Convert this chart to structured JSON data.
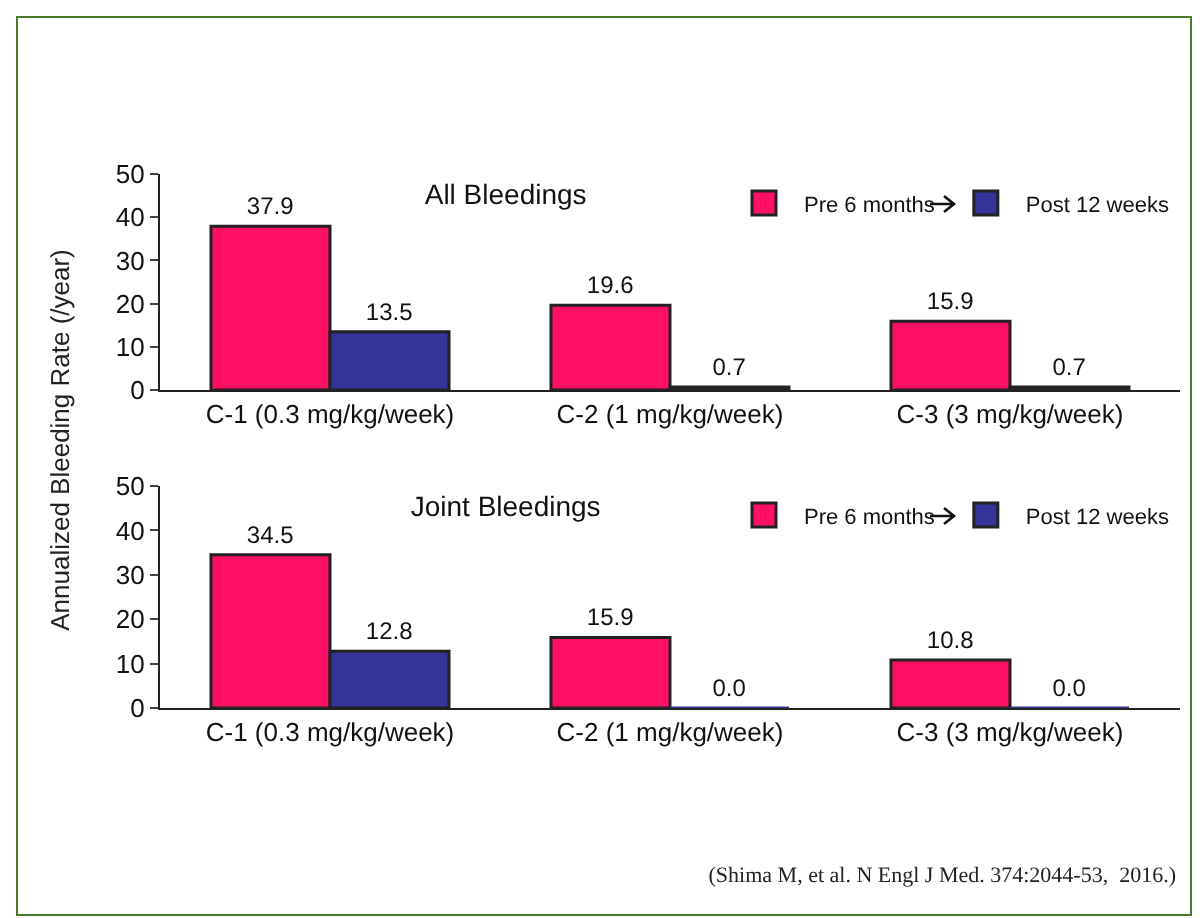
{
  "chart_data": [
    {
      "type": "bar",
      "title": "All Bleedings",
      "ylabel": "Annualized Bleeding Rate (/year)",
      "categories": [
        "C-1 (0.3 mg/kg/week)",
        "C-2 (1 mg/kg/week)",
        "C-3 (3 mg/kg/week)"
      ],
      "series": [
        {
          "name": "Pre 6 months",
          "color": "#ff0f66",
          "values": [
            37.9,
            19.6,
            15.9
          ],
          "value_labels": [
            "37.9",
            "19.6",
            "15.9"
          ]
        },
        {
          "name": "Post 12 weeks",
          "color": "#333399",
          "values": [
            13.5,
            0.7,
            0.7
          ],
          "value_labels": [
            "13.5",
            "0.7",
            "0.7"
          ]
        }
      ],
      "ylim": [
        0,
        50
      ],
      "yticks": [
        0,
        10,
        20,
        30,
        40,
        50
      ],
      "grid": false,
      "legend": "top right"
    },
    {
      "type": "bar",
      "title": "Joint Bleedings",
      "categories": [
        "C-1 (0.3 mg/kg/week)",
        "C-2 (1 mg/kg/week)",
        "C-3 (3 mg/kg/week)"
      ],
      "series": [
        {
          "name": "Pre 6 months",
          "color": "#ff0f66",
          "values": [
            34.5,
            15.9,
            10.8
          ],
          "value_labels": [
            "34.5",
            "15.9",
            "10.8"
          ]
        },
        {
          "name": "Post 12 weeks",
          "color": "#333399",
          "values": [
            12.8,
            0,
            0
          ],
          "value_labels": [
            "12.8",
            "0.0",
            "0.0"
          ]
        }
      ],
      "ylim": [
        0,
        50
      ],
      "yticks": [
        0,
        10,
        20,
        30,
        40,
        50
      ],
      "grid": false,
      "legend": "top right",
      "annotations": [
        "(Shima M, et al. N Engl J Med. 374:2044-53,  2016.)"
      ]
    }
  ]
}
